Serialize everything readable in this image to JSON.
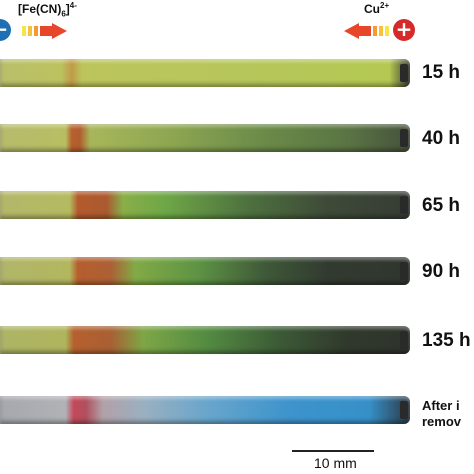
{
  "anion_label": {
    "base": "[Fe(CN)",
    "sub": "6",
    "close": "]",
    "sup": "4-"
  },
  "cation_label": {
    "base": "Cu",
    "sup": "2+"
  },
  "electrodes": {
    "negative": "−",
    "positive": "+"
  },
  "tubes": [
    {
      "time": "15 h"
    },
    {
      "time": "40 h"
    },
    {
      "time": "65 h"
    },
    {
      "time": "90 h"
    },
    {
      "time": "135 h"
    }
  ],
  "after_label": {
    "line1": "After i",
    "line2": "remov"
  },
  "scale_bar_label": "10 mm",
  "colors": {
    "negative_electrode": "#1f6fb5",
    "positive_electrode": "#d62a2a",
    "yellow_green": "#a9b84a",
    "rust_band": "#b8542a",
    "dark_end": "#3a4036",
    "blue_end": "#3d8fc4"
  }
}
